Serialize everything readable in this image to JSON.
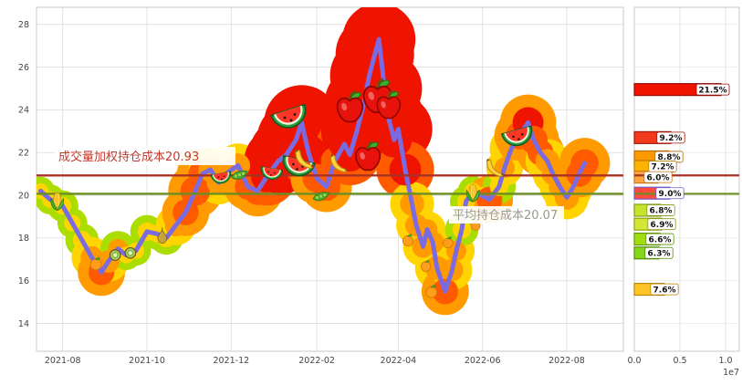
{
  "figure": {
    "background": "#ffffff"
  },
  "annotations": {
    "vwap_label": "成交量加权持仓成本20.93",
    "avg_label": "平均持仓成本20.07",
    "vwap_color": "#c0392b",
    "avg_color": "#9a9a8f"
  },
  "chart_data": {
    "type": "line",
    "title": "",
    "main": {
      "x_domain": [
        "2021-07-13",
        "2022-09-11"
      ],
      "ylim": [
        12.7,
        28.8
      ],
      "yticks": [
        14,
        16,
        18,
        20,
        22,
        24,
        26,
        28
      ],
      "xticks": [
        {
          "date": "2021-08-01",
          "label": "2021-08"
        },
        {
          "date": "2021-10-01",
          "label": "2021-10"
        },
        {
          "date": "2021-12-01",
          "label": "2021-12"
        },
        {
          "date": "2022-02-01",
          "label": "2022-02"
        },
        {
          "date": "2022-04-01",
          "label": "2022-04"
        },
        {
          "date": "2022-06-01",
          "label": "2022-06"
        },
        {
          "date": "2022-08-01",
          "label": "2022-08"
        }
      ],
      "hlines": [
        {
          "name": "vwap-cost",
          "value": 20.93,
          "color": "#a93226"
        },
        {
          "name": "average-cost",
          "value": 20.07,
          "color": "#6b8e23"
        }
      ],
      "line_color": "#7b6be0",
      "bubble_colors": [
        "#abdd00",
        "#ffd400",
        "#ff9b00",
        "#ff5a00",
        "#ee1400"
      ],
      "series": [
        [
          "2021-07-16",
          20.2,
          0.28
        ],
        [
          "2021-07-23",
          19.8,
          0.3
        ],
        [
          "2021-08-01",
          19.5,
          0.32
        ],
        [
          "2021-08-08",
          18.7,
          0.3
        ],
        [
          "2021-08-15",
          17.9,
          0.35
        ],
        [
          "2021-08-22",
          17.1,
          0.45
        ],
        [
          "2021-08-29",
          16.4,
          0.55
        ],
        [
          "2021-09-03",
          16.9,
          0.45
        ],
        [
          "2021-09-10",
          17.5,
          0.38
        ],
        [
          "2021-09-16",
          17.2,
          0.3
        ],
        [
          "2021-09-23",
          17.4,
          0.3
        ],
        [
          "2021-10-01",
          18.3,
          0.35
        ],
        [
          "2021-10-08",
          18.2,
          0.32
        ],
        [
          "2021-10-15",
          18.0,
          0.35
        ],
        [
          "2021-10-22",
          18.6,
          0.45
        ],
        [
          "2021-10-29",
          19.2,
          0.55
        ],
        [
          "2021-11-05",
          20.2,
          0.65
        ],
        [
          "2021-11-10",
          21.0,
          0.6
        ],
        [
          "2021-11-16",
          21.2,
          0.5
        ],
        [
          "2021-11-22",
          20.6,
          0.5
        ],
        [
          "2021-11-29",
          21.1,
          0.45
        ],
        [
          "2021-12-06",
          21.4,
          0.5
        ],
        [
          "2021-12-13",
          20.4,
          0.55
        ],
        [
          "2021-12-20",
          20.2,
          0.6
        ],
        [
          "2021-12-27",
          20.9,
          0.72
        ],
        [
          "2022-01-04",
          21.6,
          0.85
        ],
        [
          "2022-01-10",
          21.9,
          0.95
        ],
        [
          "2022-01-17",
          22.6,
          1.0
        ],
        [
          "2022-01-21",
          23.4,
          0.95
        ],
        [
          "2022-01-26",
          22.0,
          0.8
        ],
        [
          "2022-02-01",
          20.8,
          0.62
        ],
        [
          "2022-02-08",
          20.4,
          0.6
        ],
        [
          "2022-02-14",
          21.6,
          0.6
        ],
        [
          "2022-02-21",
          22.4,
          0.7
        ],
        [
          "2022-02-25",
          21.9,
          0.75
        ],
        [
          "2022-03-02",
          23.0,
          0.9
        ],
        [
          "2022-03-07",
          24.3,
          1.0
        ],
        [
          "2022-03-11",
          25.6,
          1.0
        ],
        [
          "2022-03-15",
          26.6,
          1.0
        ],
        [
          "2022-03-18",
          27.3,
          0.92
        ],
        [
          "2022-03-22",
          25.0,
          0.95
        ],
        [
          "2022-03-25",
          23.6,
          0.9
        ],
        [
          "2022-03-29",
          22.6,
          0.8
        ],
        [
          "2022-04-01",
          23.1,
          0.85
        ],
        [
          "2022-04-06",
          21.2,
          0.7
        ],
        [
          "2022-04-11",
          19.6,
          0.5
        ],
        [
          "2022-04-14",
          18.6,
          0.45
        ],
        [
          "2022-04-19",
          17.6,
          0.45
        ],
        [
          "2022-04-22",
          18.4,
          0.4
        ],
        [
          "2022-04-26",
          17.8,
          0.45
        ],
        [
          "2022-04-29",
          16.6,
          0.5
        ],
        [
          "2022-05-05",
          15.5,
          0.55
        ],
        [
          "2022-05-10",
          16.5,
          0.45
        ],
        [
          "2022-05-13",
          17.4,
          0.4
        ],
        [
          "2022-05-17",
          18.4,
          0.35
        ],
        [
          "2022-05-20",
          19.7,
          0.33
        ],
        [
          "2022-05-25",
          20.2,
          0.3
        ],
        [
          "2022-05-31",
          20.0,
          0.3
        ],
        [
          "2022-06-06",
          19.8,
          0.55
        ],
        [
          "2022-06-13",
          20.4,
          0.35
        ],
        [
          "2022-06-17",
          21.3,
          0.4
        ],
        [
          "2022-06-22",
          22.2,
          0.5
        ],
        [
          "2022-06-28",
          22.8,
          0.6
        ],
        [
          "2022-07-04",
          23.4,
          0.68
        ],
        [
          "2022-07-08",
          22.6,
          0.6
        ],
        [
          "2022-07-13",
          22.0,
          0.55
        ],
        [
          "2022-07-18",
          21.6,
          0.5
        ],
        [
          "2022-07-22",
          21.0,
          0.45
        ],
        [
          "2022-07-27",
          20.4,
          0.45
        ],
        [
          "2022-08-01",
          19.9,
          0.5
        ],
        [
          "2022-08-05",
          20.3,
          0.45
        ],
        [
          "2022-08-10",
          21.0,
          0.55
        ],
        [
          "2022-08-14",
          21.5,
          0.6
        ]
      ],
      "fruits": [
        {
          "icon": "corn",
          "date": "2021-07-28",
          "price": 19.7,
          "size": 24
        },
        {
          "icon": "tangerine",
          "date": "2021-08-25",
          "price": 16.8,
          "size": 18
        },
        {
          "icon": "kiwi",
          "date": "2021-09-08",
          "price": 17.2,
          "size": 17
        },
        {
          "icon": "kiwi",
          "date": "2021-09-19",
          "price": 17.3,
          "size": 17
        },
        {
          "icon": "pear",
          "date": "2021-10-12",
          "price": 18.1,
          "size": 20
        },
        {
          "icon": "watermelon",
          "date": "2021-11-24",
          "price": 20.8,
          "size": 26,
          "rot": -10
        },
        {
          "icon": "peas",
          "date": "2021-12-07",
          "price": 20.9,
          "size": 22
        },
        {
          "icon": "watermelon",
          "date": "2021-12-30",
          "price": 21.0,
          "size": 28,
          "rot": 10
        },
        {
          "icon": "watermelon",
          "date": "2022-01-13",
          "price": 23.6,
          "size": 46,
          "rot": -18
        },
        {
          "icon": "watermelon",
          "date": "2022-01-18",
          "price": 21.3,
          "size": 42,
          "rot": 14
        },
        {
          "icon": "banana",
          "date": "2022-01-23",
          "price": 21.6,
          "size": 30
        },
        {
          "icon": "peas",
          "date": "2022-02-04",
          "price": 19.9,
          "size": 22
        },
        {
          "icon": "banana",
          "date": "2022-02-17",
          "price": 21.4,
          "size": 28
        },
        {
          "icon": "apple",
          "date": "2022-02-25",
          "price": 24.1,
          "size": 42
        },
        {
          "icon": "apple",
          "date": "2022-03-10",
          "price": 21.8,
          "size": 40
        },
        {
          "icon": "apple",
          "date": "2022-03-17",
          "price": 24.6,
          "size": 46
        },
        {
          "icon": "apple",
          "date": "2022-03-25",
          "price": 24.2,
          "size": 38
        },
        {
          "icon": "tangerine",
          "date": "2022-04-08",
          "price": 17.9,
          "size": 17
        },
        {
          "icon": "tangerine",
          "date": "2022-04-21",
          "price": 16.7,
          "size": 16
        },
        {
          "icon": "tangerine",
          "date": "2022-04-25",
          "price": 15.5,
          "size": 18
        },
        {
          "icon": "tangerine",
          "date": "2022-05-07",
          "price": 17.8,
          "size": 16
        },
        {
          "icon": "corn",
          "date": "2022-05-25",
          "price": 20.1,
          "size": 24
        },
        {
          "icon": "tangerine",
          "date": "2022-05-27",
          "price": 18.6,
          "size": 15
        },
        {
          "icon": "banana",
          "date": "2022-06-10",
          "price": 21.2,
          "size": 28
        },
        {
          "icon": "watermelon",
          "date": "2022-06-27",
          "price": 22.7,
          "size": 40,
          "rot": -15
        }
      ]
    },
    "dist": {
      "type": "bar",
      "orientation": "horizontal",
      "x_unit": "1e7",
      "xlim_e7": [
        0,
        1.15
      ],
      "xticks_e7": [
        0.0,
        0.5,
        1.0
      ],
      "xtick_labels": [
        "0.0",
        "0.5",
        "1.0"
      ],
      "bars": [
        {
          "price": 24.95,
          "label": "21.5%",
          "value_e7": 0.95,
          "color": "#ee1400",
          "border": "#8f0500"
        },
        {
          "price": 22.7,
          "label": "9.2%",
          "value_e7": 0.4,
          "color": "#f23b1e",
          "border": "#a01000"
        },
        {
          "price": 21.8,
          "label": "8.8%",
          "value_e7": 0.38,
          "color": "#ff9900",
          "border": "#b36a00"
        },
        {
          "price": 21.35,
          "label": "7.2%",
          "value_e7": 0.31,
          "color": "#ffb300",
          "border": "#b37a00"
        },
        {
          "price": 20.85,
          "label": "6.0%",
          "value_e7": 0.26,
          "color": "#ffa640",
          "border": "#c4751a"
        },
        {
          "price": 20.1,
          "label": "9.0%",
          "value_e7": 0.39,
          "color": "#ff4a3d",
          "border": "#6a5acd"
        },
        {
          "price": 19.3,
          "label": "6.8%",
          "value_e7": 0.29,
          "color": "#c6e32e",
          "border": "#7a9a10"
        },
        {
          "price": 18.65,
          "label": "6.9%",
          "value_e7": 0.3,
          "color": "#d4e636",
          "border": "#8a9a14"
        },
        {
          "price": 17.95,
          "label": "6.6%",
          "value_e7": 0.28,
          "color": "#9fdd12",
          "border": "#5f9400"
        },
        {
          "price": 17.3,
          "label": "6.3%",
          "value_e7": 0.27,
          "color": "#86d51c",
          "border": "#4f8c08"
        },
        {
          "price": 15.6,
          "label": "7.6%",
          "value_e7": 0.33,
          "color": "#ffc425",
          "border": "#b38300"
        }
      ]
    }
  }
}
